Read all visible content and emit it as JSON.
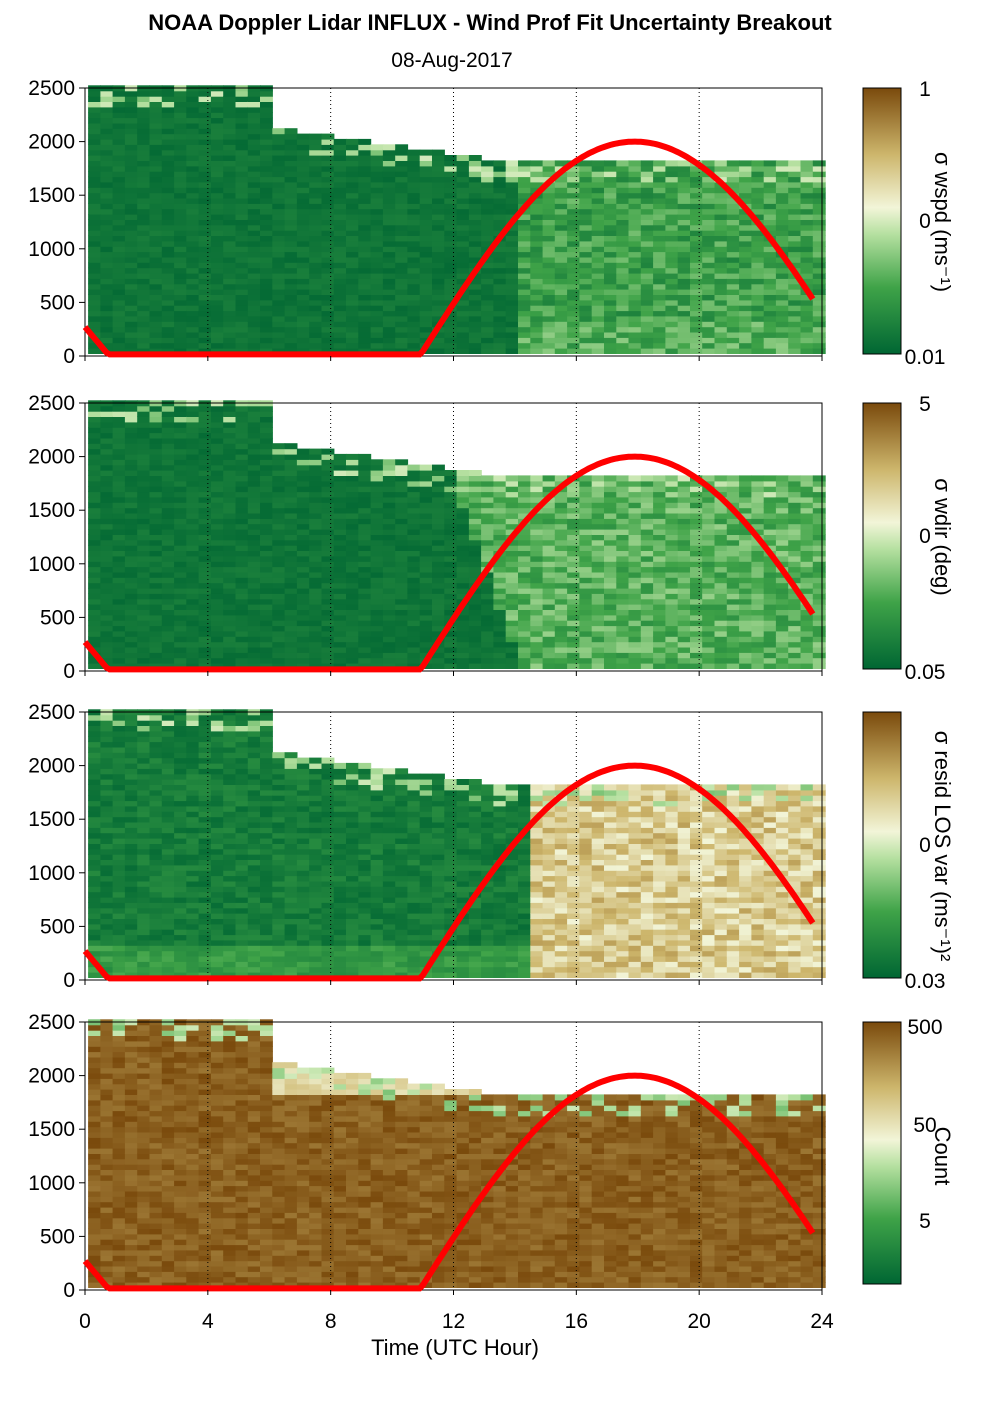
{
  "title": "NOAA Doppler Lidar INFLUX - Wind Prof Fit Uncertainty Breakout",
  "subtitle": "08-Aug-2017",
  "chart_data": [
    {
      "type": "heatmap",
      "panel": 1,
      "colorbar_label": "σ wspd (ms⁻¹)",
      "colorbar_ticks": [
        "1",
        "0",
        "0.01"
      ],
      "colorbar_scale": "log",
      "ylim": [
        0,
        2500
      ],
      "yticks": [
        "2500",
        "2000",
        "1500",
        "1000",
        "500",
        "0"
      ],
      "xlim": [
        0,
        24
      ],
      "sun_curve": true
    },
    {
      "type": "heatmap",
      "panel": 2,
      "colorbar_label": "σ wdir (deg)",
      "colorbar_ticks": [
        "5",
        "0",
        "0.05"
      ],
      "colorbar_scale": "log",
      "ylim": [
        0,
        2500
      ],
      "yticks": [
        "2500",
        "2000",
        "1500",
        "1000",
        "500",
        "0"
      ],
      "xlim": [
        0,
        24
      ],
      "sun_curve": true
    },
    {
      "type": "heatmap",
      "panel": 3,
      "colorbar_label": "σ resid LOS var (ms⁻¹)²",
      "colorbar_ticks": [
        "0",
        "0.03"
      ],
      "colorbar_scale": "log",
      "ylim": [
        0,
        2500
      ],
      "yticks": [
        "2500",
        "2000",
        "1500",
        "1000",
        "500",
        "0"
      ],
      "xlim": [
        0,
        24
      ],
      "sun_curve": true
    },
    {
      "type": "heatmap",
      "panel": 4,
      "colorbar_label": "Count",
      "colorbar_ticks": [
        "500",
        "50",
        "5"
      ],
      "colorbar_scale": "log",
      "ylim": [
        0,
        2500
      ],
      "yticks": [
        "2500",
        "2000",
        "1500",
        "1000",
        "500",
        "0"
      ],
      "xlim": [
        0,
        24
      ],
      "xticks": [
        "0",
        "4",
        "8",
        "12",
        "16",
        "20",
        "24"
      ],
      "xlabel": "Time (UTC Hour)",
      "sun_curve": true
    }
  ],
  "colors": {
    "dark_green": "#006633",
    "mid_green": "#3fa348",
    "light_green": "#b5e0a0",
    "pale": "#f2f5d8",
    "tan": "#d4c07a",
    "brown": "#7a4a0c",
    "sun_curve": "#ff0000"
  }
}
